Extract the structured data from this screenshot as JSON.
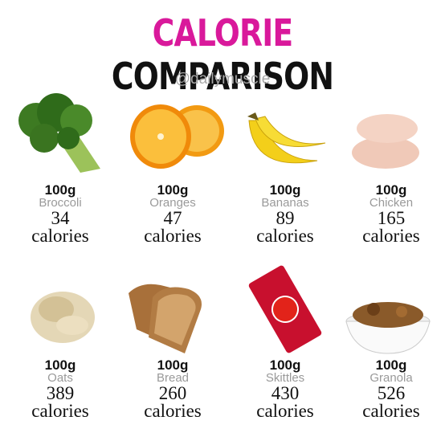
{
  "header": {
    "title_highlight": "CALORIE",
    "title_rest": "COMPARISON",
    "handle": "@dailymuscle"
  },
  "items": [
    {
      "weight": "100g",
      "name": "Broccoli",
      "calories": "34",
      "unit": "calories"
    },
    {
      "weight": "100g",
      "name": "Oranges",
      "calories": "47",
      "unit": "calories"
    },
    {
      "weight": "100g",
      "name": "Bananas",
      "calories": "89",
      "unit": "calories"
    },
    {
      "weight": "100g",
      "name": "Chicken",
      "calories": "165",
      "unit": "calories"
    },
    {
      "weight": "100g",
      "name": "Oats",
      "calories": "389",
      "unit": "calories"
    },
    {
      "weight": "100g",
      "name": "Bread",
      "calories": "260",
      "unit": "calories"
    },
    {
      "weight": "100g",
      "name": "Skittles",
      "calories": "430",
      "unit": "calories"
    },
    {
      "weight": "100g",
      "name": "Granola",
      "calories": "526",
      "unit": "calories"
    }
  ]
}
